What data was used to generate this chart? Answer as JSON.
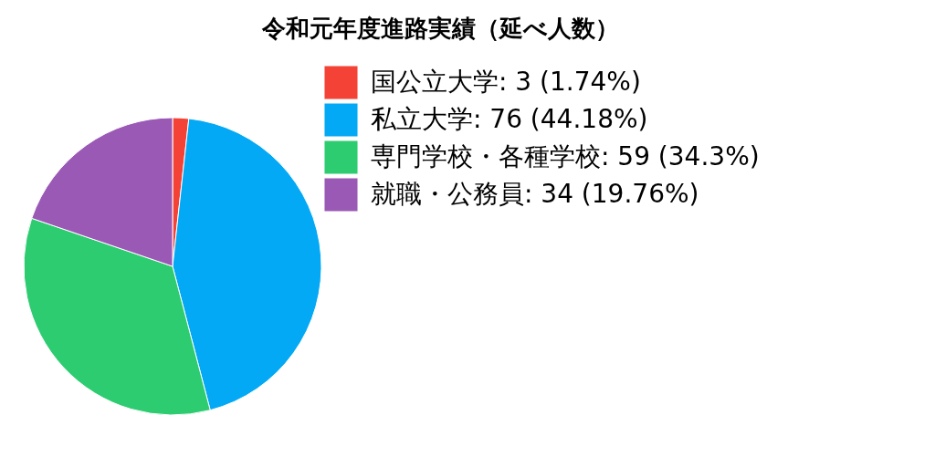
{
  "chart_data": {
    "type": "pie",
    "title": "令和元年度進路実績（延べ人数）",
    "categories": [
      "国公立大学: 3 (1.74%)",
      "私立大学: 76 (44.18%)",
      "専門学校・各種学校: 59 (34.3%)",
      "就職・公務員: 34 (19.76%)"
    ],
    "values": [
      3,
      76,
      59,
      34
    ],
    "colors": [
      "#f44336",
      "#03a9f4",
      "#2ecc71",
      "#9b59b6"
    ],
    "legend": "top right"
  }
}
